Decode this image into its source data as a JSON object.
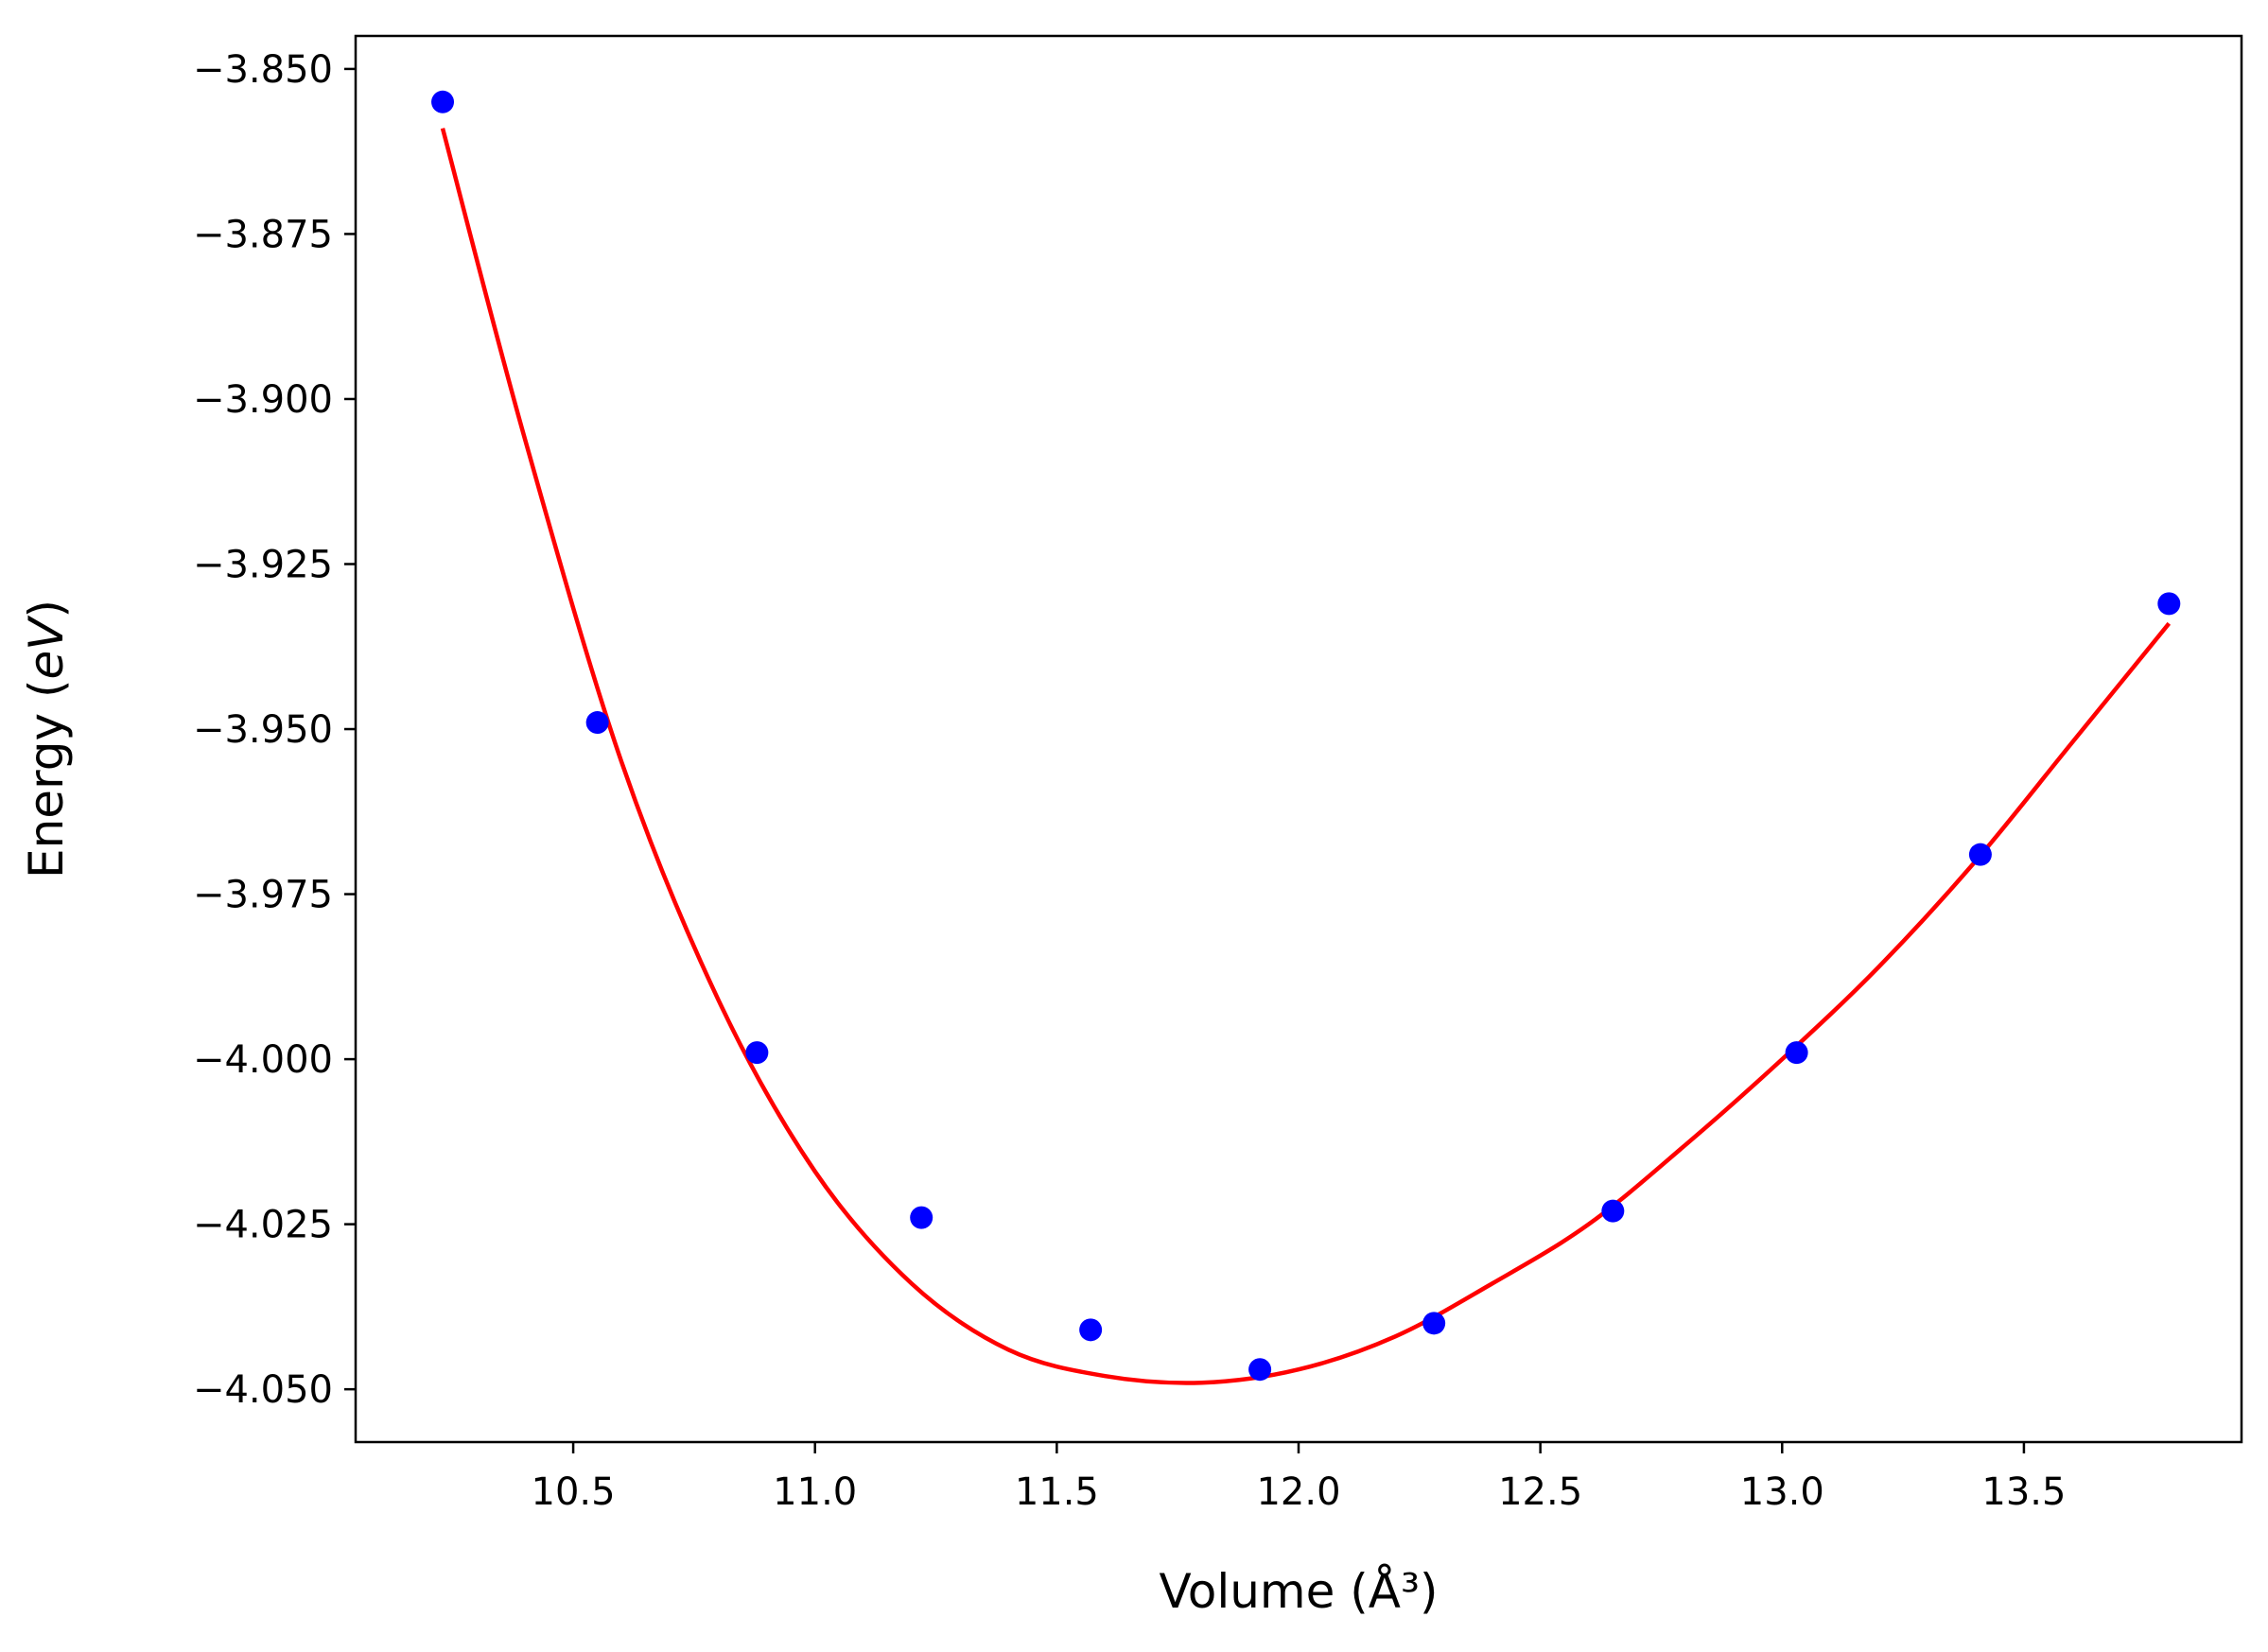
{
  "chart_data": {
    "type": "scatter",
    "title": "",
    "xlabel": "Volume (Å³)",
    "ylabel": "Energy (eV)",
    "xlim": [
      10.05,
      13.95
    ],
    "ylim": [
      -4.058,
      -3.845
    ],
    "xticks": [
      10.5,
      11.0,
      11.5,
      12.0,
      12.5,
      13.0,
      13.5
    ],
    "xtick_labels": [
      "10.5",
      "11.0",
      "11.5",
      "12.0",
      "12.5",
      "13.0",
      "13.5"
    ],
    "yticks": [
      -3.85,
      -3.875,
      -3.9,
      -3.925,
      -3.95,
      -3.975,
      -4.0,
      -4.025,
      -4.05
    ],
    "ytick_labels": [
      "−3.850",
      "−3.875",
      "−3.900",
      "−3.925",
      "−3.950",
      "−3.975",
      "−4.000",
      "−4.025",
      "−4.050"
    ],
    "grid": false,
    "legend": "none",
    "series": [
      {
        "kind": "scatter",
        "color": "#0000ff",
        "x": [
          10.23,
          10.55,
          10.88,
          11.22,
          11.57,
          11.92,
          12.28,
          12.65,
          13.03,
          13.41,
          13.8
        ],
        "y": [
          -3.855,
          -3.949,
          -3.999,
          -4.024,
          -4.041,
          -4.047,
          -4.04,
          -4.023,
          -3.999,
          -3.969,
          -3.931
        ]
      },
      {
        "kind": "line",
        "color": "#ff0000",
        "x": [
          10.23,
          10.4,
          10.6,
          10.8,
          11.0,
          11.2,
          11.4,
          11.6,
          11.8,
          12.0,
          12.2,
          12.4,
          12.6,
          12.8,
          13.0,
          13.2,
          13.4,
          13.6,
          13.8
        ],
        "y": [
          -3.859,
          -3.906,
          -3.955,
          -3.991,
          -4.017,
          -4.034,
          -4.044,
          -4.048,
          -4.049,
          -4.047,
          -4.042,
          -4.034,
          -4.025,
          -4.013,
          -4.0,
          -3.986,
          -3.97,
          -3.952,
          -3.934
        ]
      }
    ]
  }
}
